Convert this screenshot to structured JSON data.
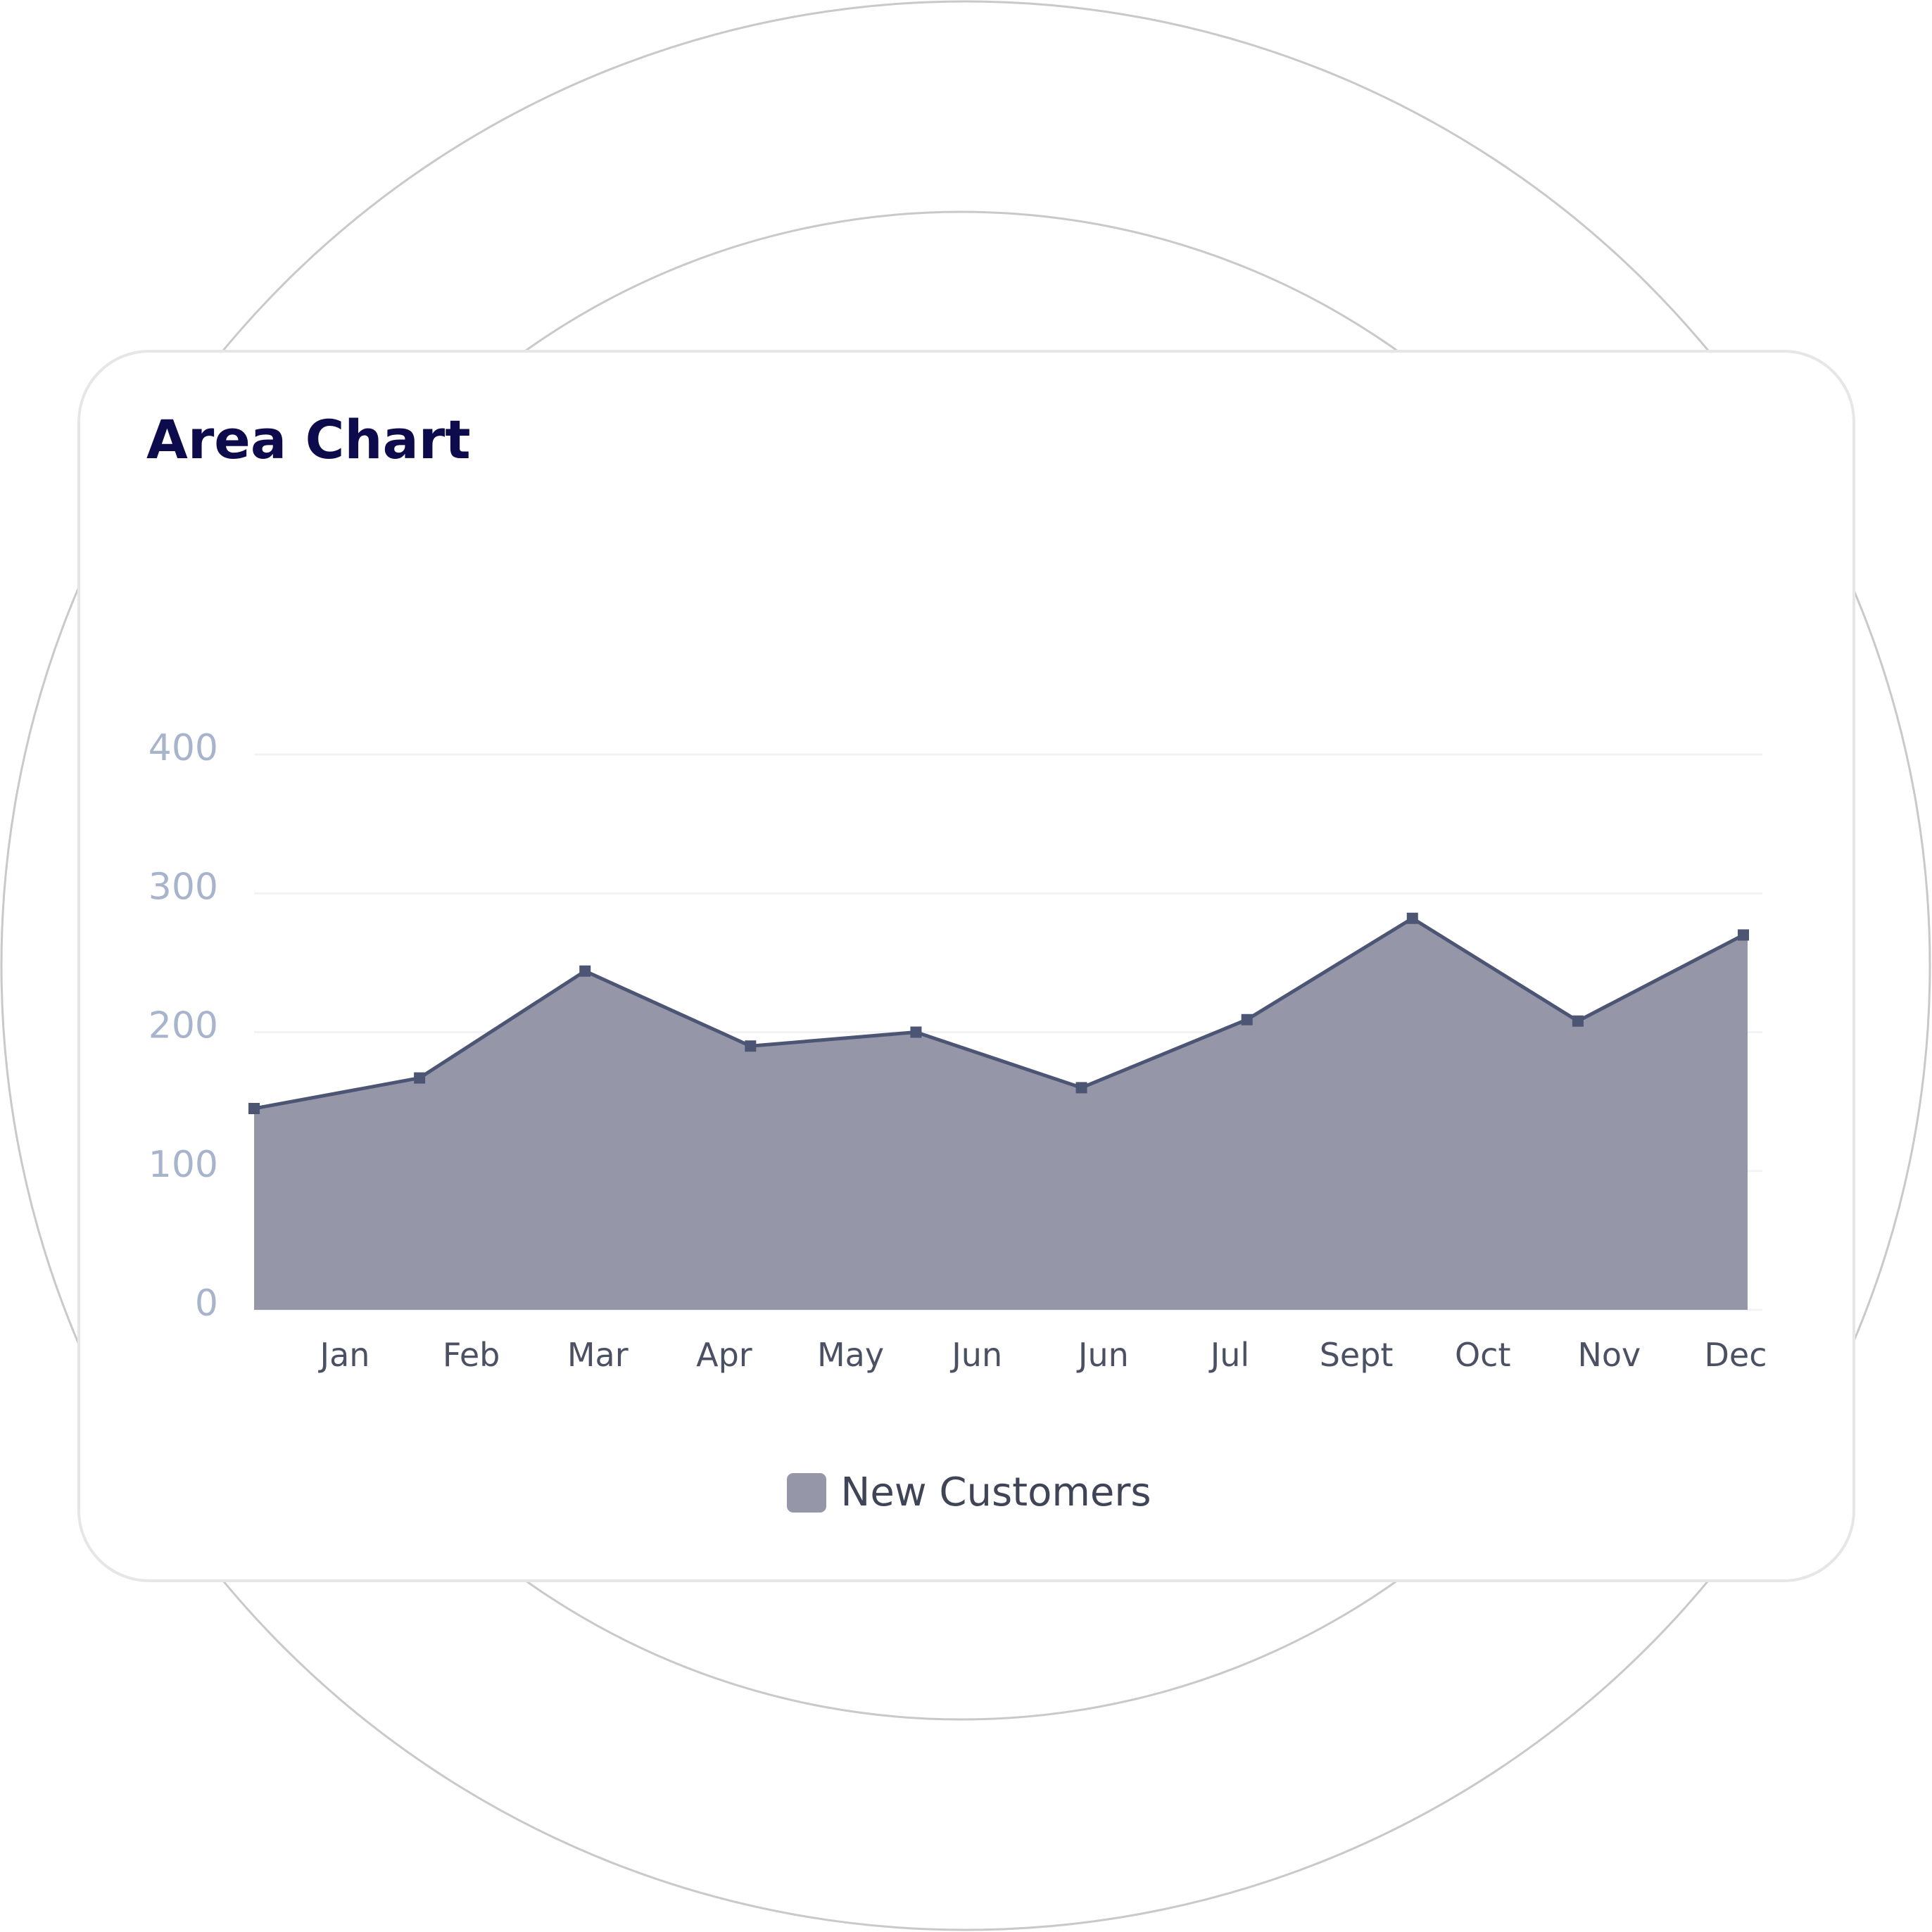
{
  "card": {
    "title": "Area Chart"
  },
  "colors": {
    "fill": "#9597a8",
    "line": "#4d5574",
    "title": "#0e0b4d",
    "y_tick": "#a7b4cc",
    "x_tick": "#4b5163",
    "grid": "#f3f3f5",
    "legend_text": "#3f4556",
    "bg_circle": "#c9c9cc",
    "card_border": "#e6e6e8"
  },
  "chart_data": {
    "type": "area",
    "title": "Area Chart",
    "xlabel": "",
    "ylabel": "",
    "x_tick_labels": [
      "Jan",
      "Feb",
      "Mar",
      "Apr",
      "May",
      "Jun",
      "Jun",
      "Jul",
      "Sept",
      "Oct",
      "Nov",
      "Dec"
    ],
    "y_ticks": [
      0,
      100,
      200,
      300,
      400
    ],
    "ylim": [
      0,
      400
    ],
    "grid": "horizontal",
    "legend_position": "bottom",
    "series": [
      {
        "name": "New Customers",
        "values": [
          145,
          167,
          244,
          190,
          200,
          160,
          209,
          282,
          208,
          270
        ]
      }
    ]
  }
}
